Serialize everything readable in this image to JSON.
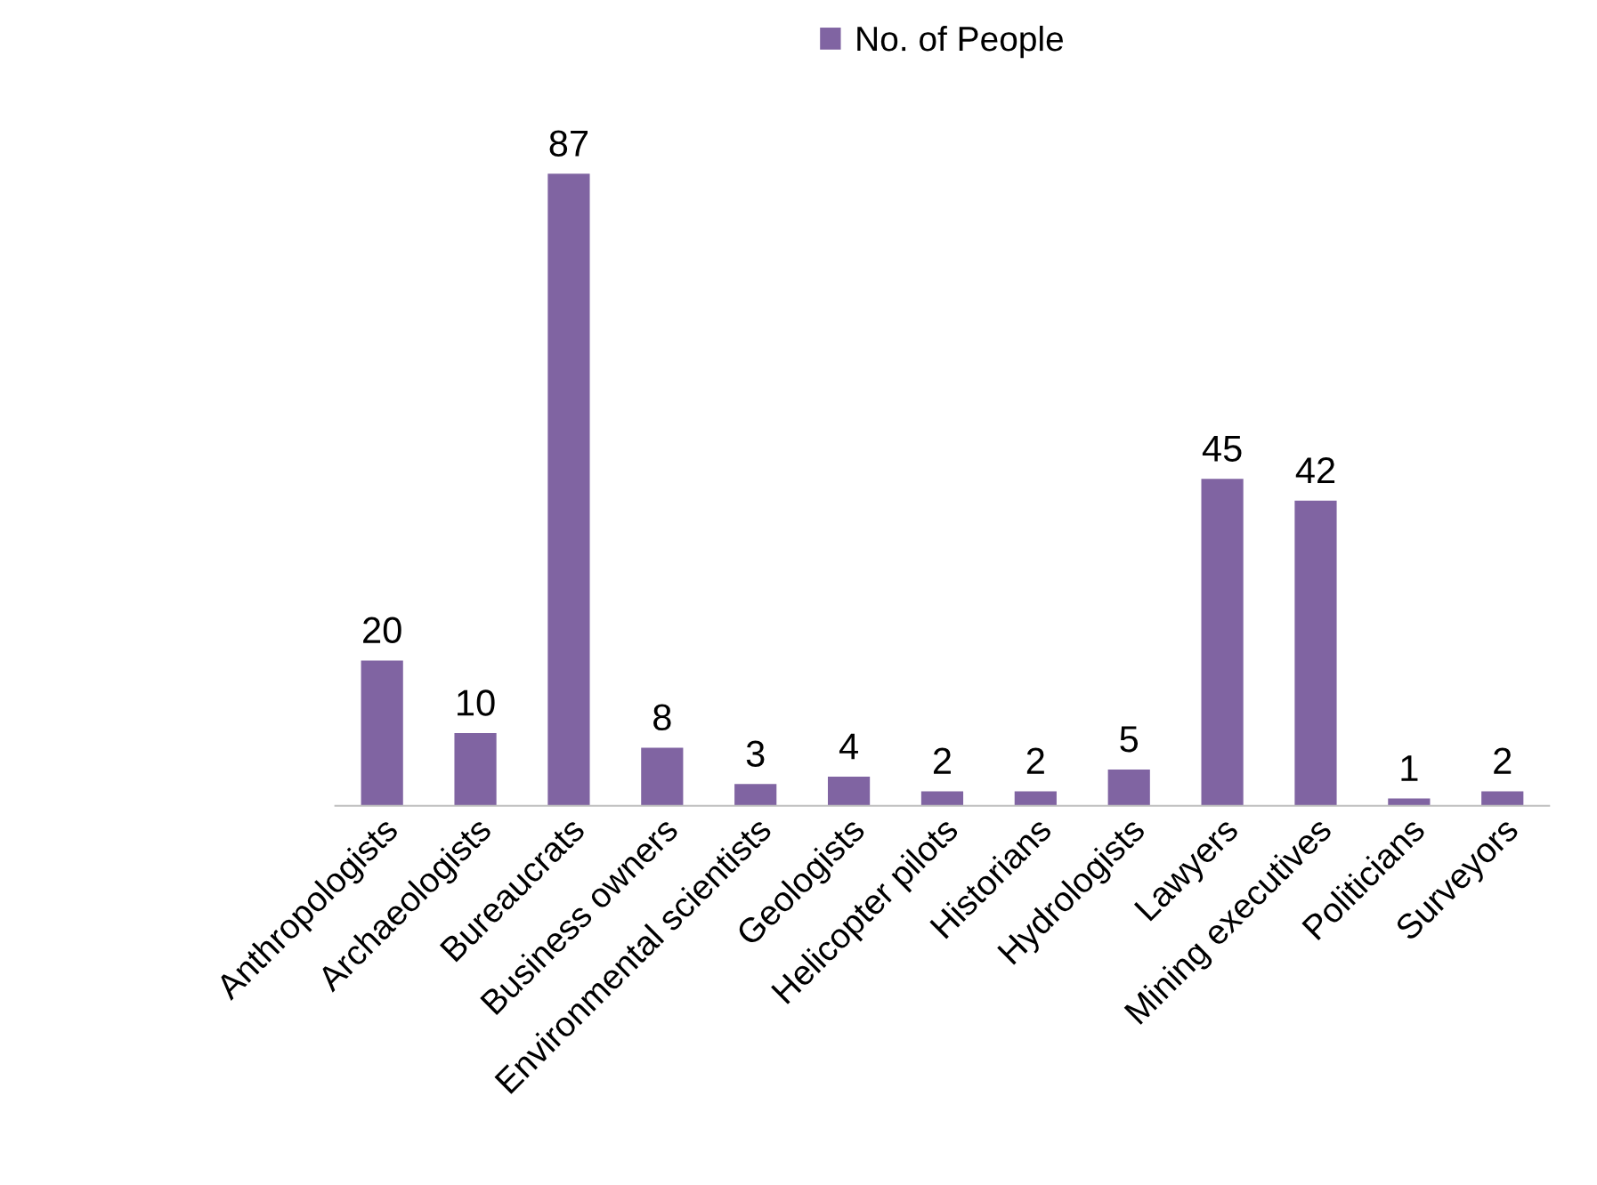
{
  "chart_data": {
    "type": "bar",
    "categories": [
      "Anthropologists",
      "Archaeologists",
      "Bureaucrats",
      "Business owners",
      "Environmental scientists",
      "Geologists",
      "Helicopter pilots",
      "Historians",
      "Hydrologists",
      "Lawyers",
      "Mining executives",
      "Politicians",
      "Surveyors"
    ],
    "series": [
      {
        "name": "No. of People",
        "color": "#8064a2",
        "values": [
          20,
          10,
          87,
          8,
          3,
          4,
          2,
          2,
          5,
          45,
          42,
          1,
          2
        ]
      }
    ],
    "data_labels": true,
    "legend": "top",
    "grid": false,
    "tick_labels": "x"
  }
}
